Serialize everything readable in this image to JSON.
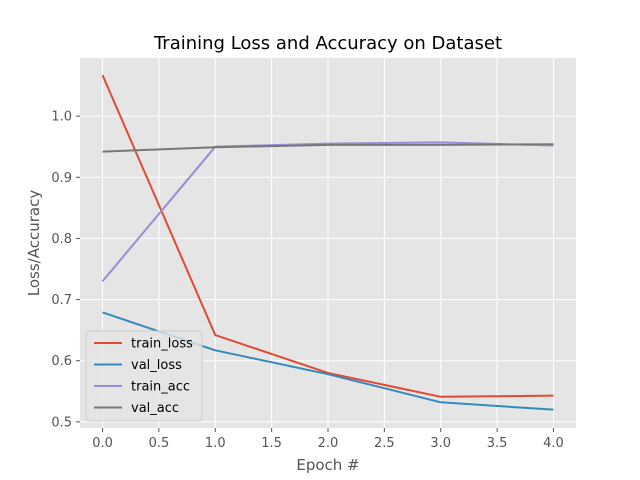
{
  "chart_data": {
    "type": "line",
    "title": "Training Loss and Accuracy on Dataset",
    "xlabel": "Epoch #",
    "ylabel": "Loss/Accuracy",
    "x": [
      0,
      1,
      2,
      3,
      4
    ],
    "xlim": [
      -0.2,
      4.2
    ],
    "ylim": [
      0.49,
      1.095
    ],
    "xticks": [
      "0.0",
      "0.5",
      "1.0",
      "1.5",
      "2.0",
      "2.5",
      "3.0",
      "3.5",
      "4.0"
    ],
    "yticks": [
      "0.5",
      "0.6",
      "0.7",
      "0.8",
      "0.9",
      "1.0"
    ],
    "grid": true,
    "legend_position": "lower-left",
    "series": [
      {
        "name": "train_loss",
        "color": "#E24A33",
        "values": [
          1.067,
          0.642,
          0.58,
          0.541,
          0.543
        ]
      },
      {
        "name": "val_loss",
        "color": "#348ABD",
        "values": [
          0.679,
          0.617,
          0.578,
          0.532,
          0.52
        ]
      },
      {
        "name": "train_acc",
        "color": "#988ED5",
        "values": [
          0.73,
          0.95,
          0.955,
          0.957,
          0.952
        ]
      },
      {
        "name": "val_acc",
        "color": "#777777",
        "values": [
          0.942,
          0.949,
          0.953,
          0.953,
          0.954
        ]
      }
    ]
  }
}
